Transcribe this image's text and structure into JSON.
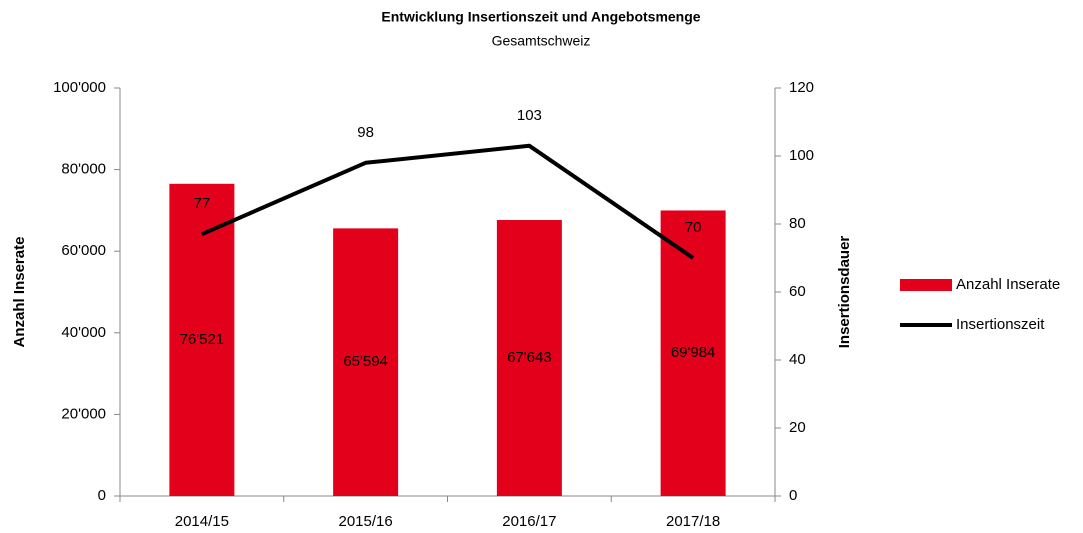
{
  "chart_data": {
    "type": "combo",
    "title": "Entwicklung Insertionszeit und Angebotsmenge",
    "subtitle": "Gesamtschweiz",
    "y_label": "Anzahl Inserate",
    "y2_label": "Insertionsdauer",
    "categories": [
      "2014/15",
      "2015/16",
      "2016/17",
      "2017/18"
    ],
    "series": [
      {
        "name": "Anzahl Inserate",
        "type": "bar",
        "color": "#e2001a",
        "values": [
          76521,
          65594,
          67643,
          69984
        ],
        "value_labels": [
          "76'521",
          "65'594",
          "67'643",
          "69'984"
        ]
      },
      {
        "name": "Insertionszeit",
        "type": "line",
        "color": "#000000",
        "axis": "y2",
        "values": [
          77,
          98,
          103,
          70
        ]
      }
    ],
    "ylim": [
      0,
      100000
    ],
    "yticks": [
      0,
      {
        "value": 20000,
        "label": "20'000"
      },
      {
        "value": 40000,
        "label": "40'000"
      },
      {
        "value": 60000,
        "label": "60'000"
      },
      {
        "value": 80000,
        "label": "80'000"
      },
      {
        "value": 100000,
        "label": "100'000"
      }
    ],
    "y2lim": [
      0,
      120
    ],
    "y2ticks": [
      0,
      20,
      40,
      60,
      80,
      100,
      120
    ],
    "legend": "right"
  }
}
